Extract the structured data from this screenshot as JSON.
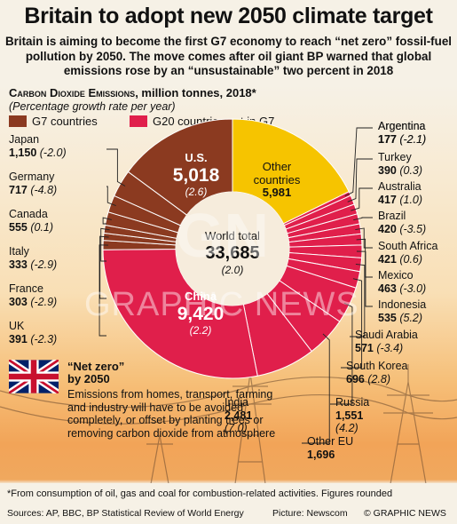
{
  "title": "Britain to adopt new 2050 climate target",
  "subtitle": "Britain is aiming to become the first G7 economy to reach “net zero” fossil-fuel pollution by 2050. The move comes after oil giant BP warned that global emissions rose by an “unsustainable” two percent in 2018",
  "section": {
    "title_sc": "Carbon Dioxide Emissions",
    "title_rest": ", million tonnes, 2018*",
    "note": "(Percentage growth rate per year)"
  },
  "legend": [
    {
      "label": "G7 countries",
      "color": "#8b3a20"
    },
    {
      "label": "G20 countries not in G7",
      "color": "#e01f4b"
    }
  ],
  "colors": {
    "g7": "#8b3a20",
    "g20": "#e01f4b",
    "other": "#f6c400"
  },
  "chart_data": {
    "type": "pie",
    "style": "donut",
    "center": {
      "label": "World total",
      "value": "33,685",
      "growth": "(2.0)"
    },
    "slices": [
      {
        "name": "Other countries",
        "value": 5981,
        "value_label": "5,981",
        "growth": "",
        "group": "other"
      },
      {
        "name": "Argentina",
        "value": 177,
        "value_label": "177",
        "growth": "(-2.1)",
        "group": "g20"
      },
      {
        "name": "Turkey",
        "value": 390,
        "value_label": "390",
        "growth": "(0.3)",
        "group": "g20"
      },
      {
        "name": "Australia",
        "value": 417,
        "value_label": "417",
        "growth": "(1.0)",
        "group": "g20"
      },
      {
        "name": "Brazil",
        "value": 420,
        "value_label": "420",
        "growth": "(-3.5)",
        "group": "g20"
      },
      {
        "name": "South Africa",
        "value": 421,
        "value_label": "421",
        "growth": "(0.6)",
        "group": "g20"
      },
      {
        "name": "Mexico",
        "value": 463,
        "value_label": "463",
        "growth": "(-3.0)",
        "group": "g20"
      },
      {
        "name": "Indonesia",
        "value": 535,
        "value_label": "535",
        "growth": "(5.2)",
        "group": "g20"
      },
      {
        "name": "Saudi Arabia",
        "value": 571,
        "value_label": "571",
        "growth": "(-3.4)",
        "group": "g20"
      },
      {
        "name": "South Korea",
        "value": 696,
        "value_label": "696",
        "growth": "(2.8)",
        "group": "g20"
      },
      {
        "name": "Russia",
        "value": 1551,
        "value_label": "1,551",
        "growth": "(4.2)",
        "group": "g20"
      },
      {
        "name": "Other EU",
        "value": 1696,
        "value_label": "1,696",
        "growth": "",
        "group": "g20"
      },
      {
        "name": "India",
        "value": 2481,
        "value_label": "2,481",
        "growth": "(7.0)",
        "group": "g20"
      },
      {
        "name": "China",
        "value": 9420,
        "value_label": "9,420",
        "growth": "(2.2)",
        "group": "g20"
      },
      {
        "name": "UK",
        "value": 391,
        "value_label": "391",
        "growth": "(-2.3)",
        "group": "g7"
      },
      {
        "name": "France",
        "value": 303,
        "value_label": "303",
        "growth": "(-2.9)",
        "group": "g7"
      },
      {
        "name": "Italy",
        "value": 333,
        "value_label": "333",
        "growth": "(-2.9)",
        "group": "g7"
      },
      {
        "name": "Canada",
        "value": 555,
        "value_label": "555",
        "growth": "(0.1)",
        "group": "g7"
      },
      {
        "name": "Germany",
        "value": 717,
        "value_label": "717",
        "growth": "(-4.8)",
        "group": "g7"
      },
      {
        "name": "Japan",
        "value": 1150,
        "value_label": "1,150",
        "growth": "(-2.0)",
        "group": "g7"
      },
      {
        "name": "U.S.",
        "value": 5018,
        "value_label": "5,018",
        "growth": "(2.6)",
        "group": "g7"
      }
    ]
  },
  "net_zero": {
    "heading": "“Net zero” by 2050",
    "body": "Emissions from homes, transport, farming and industry will have to be avoided completely, or offset by planting trees or removing carbon dioxide from atmosphere"
  },
  "watermark": "GRAPHIC NEWS",
  "watermark_logo": "GN",
  "footnote": "*From consumption of oil, gas and coal for combustion-related activities. Figures rounded",
  "sources": "Sources: AP, BBC, BP Statistical Review of World Energy",
  "credit": "Picture: Newscom",
  "brand": "© GRAPHIC NEWS"
}
